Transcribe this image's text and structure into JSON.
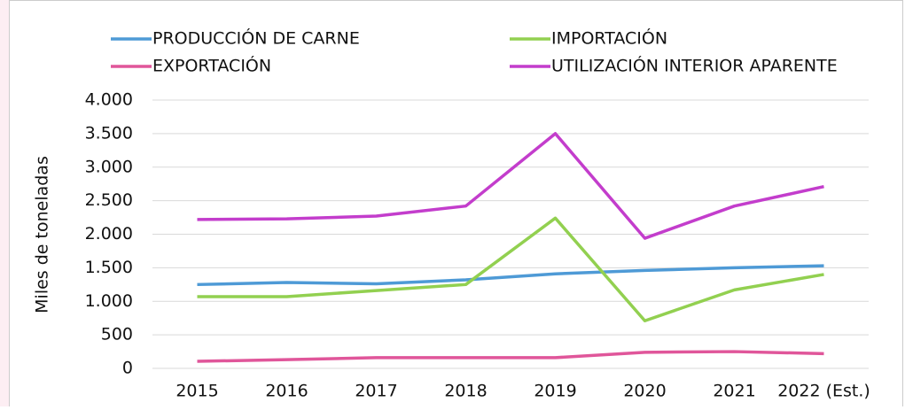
{
  "chart_data": {
    "type": "line",
    "y_axis_label": "Miles de toneladas",
    "categories": [
      "2015",
      "2016",
      "2017",
      "2018",
      "2019",
      "2020",
      "2021",
      "2022 (Est.)"
    ],
    "series": [
      {
        "name": "PRODUCCIÓN DE CARNE",
        "color": "#4e9ad6",
        "values": [
          1250,
          1280,
          1260,
          1320,
          1410,
          1460,
          1500,
          1530
        ]
      },
      {
        "name": "IMPORTACIÓN",
        "color": "#92d050",
        "values": [
          1070,
          1070,
          1160,
          1250,
          2240,
          710,
          1170,
          1400
        ]
      },
      {
        "name": "EXPORTACIÓN",
        "color": "#e0569a",
        "values": [
          105,
          130,
          160,
          160,
          160,
          240,
          250,
          220
        ]
      },
      {
        "name": "UTILIZACIÓN INTERIOR APARENTE",
        "color": "#c33dcc",
        "values": [
          2220,
          2230,
          2270,
          2420,
          3500,
          1940,
          2420,
          2710
        ]
      }
    ],
    "ylim": [
      0,
      4000
    ],
    "yticks": [
      0,
      500,
      {
        "value": 1000,
        "label": "1.000"
      },
      {
        "value": 1500,
        "label": "1.500"
      },
      {
        "value": 2000,
        "label": "2.000"
      },
      {
        "value": 2500,
        "label": "2.500"
      },
      {
        "value": 3000,
        "label": "3.000"
      },
      {
        "value": 3500,
        "label": "3.500"
      },
      {
        "value": 4000,
        "label": "4.000"
      }
    ],
    "grid": true
  }
}
